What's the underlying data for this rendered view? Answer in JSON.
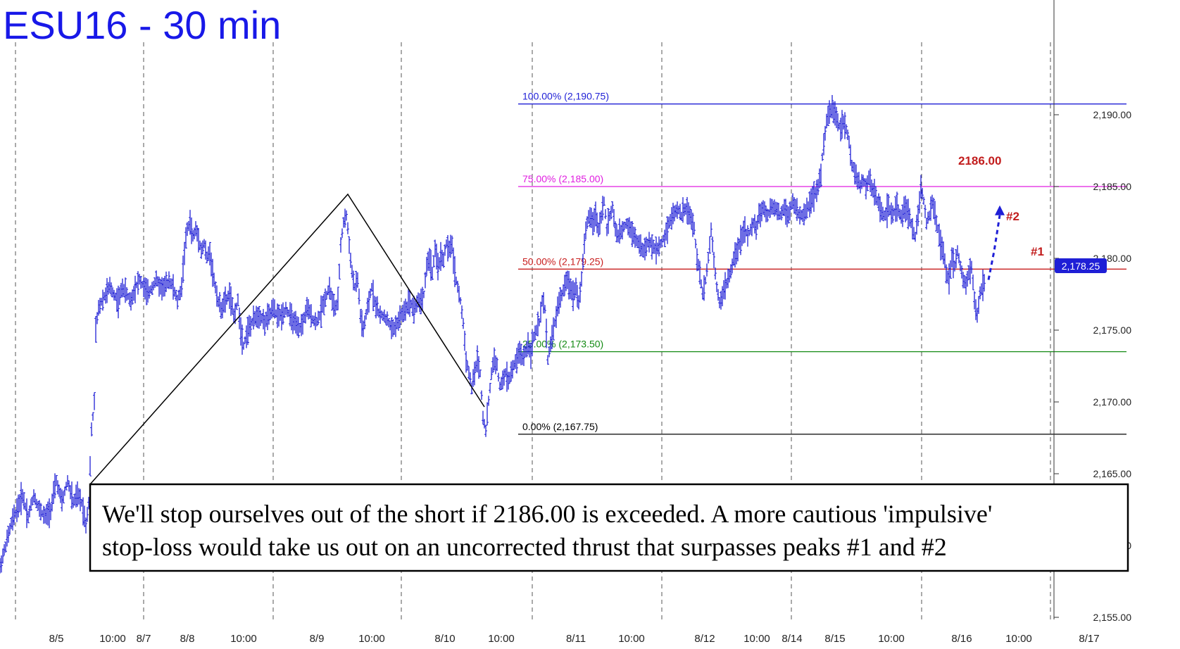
{
  "chart_data": {
    "type": "ohlc",
    "title": "ESU16 - 30 min",
    "current_price_label": "2,178.25",
    "current_price": 2178.25,
    "ylim": [
      2153.3,
      2199.5
    ],
    "y_ticks": [
      {
        "value": 2155,
        "label": "2,155.00"
      },
      {
        "value": 2160,
        "label": "2,160.00"
      },
      {
        "value": 2165,
        "label": "2,165.00"
      },
      {
        "value": 2170,
        "label": "2,170.00"
      },
      {
        "value": 2175,
        "label": "2,175.00"
      },
      {
        "value": 2180,
        "label": "2,180.00"
      },
      {
        "value": 2185,
        "label": "2,185.00"
      },
      {
        "value": 2190,
        "label": "2,190.00"
      }
    ],
    "x_ticks": [
      "8/5",
      "10:00",
      "8/7",
      "8/8",
      "10:00",
      "8/9",
      "10:00",
      "8/10",
      "10:00",
      "8/11",
      "10:00",
      "8/12",
      "10:00",
      "8/14",
      "8/15",
      "10:00",
      "8/16",
      "10:00",
      "8/17"
    ],
    "fib_levels": [
      {
        "label": "100.00% (2,190.75)",
        "value": 2190.75,
        "color": "#1f1fd6"
      },
      {
        "label": "75.00% (2,185.00)",
        "value": 2185.0,
        "color": "#e01ee0"
      },
      {
        "label": "50.00% (2,179.25)",
        "value": 2179.25,
        "color": "#c81e1e"
      },
      {
        "label": "25.00% (2,173.50)",
        "value": 2173.5,
        "color": "#138a13"
      },
      {
        "label": "0.00% (2,167.75)",
        "value": 2167.75,
        "color": "#000000"
      }
    ],
    "annotations": {
      "level": "2186.00",
      "peak2": "#2",
      "peak1": "#1"
    },
    "price_path": [
      [
        0,
        2158.5
      ],
      [
        8,
        2160
      ],
      [
        16,
        2161.5
      ],
      [
        24,
        2162.5
      ],
      [
        32,
        2163.5
      ],
      [
        40,
        2162
      ],
      [
        48,
        2163.5
      ],
      [
        56,
        2162.5
      ],
      [
        64,
        2162
      ],
      [
        72,
        2162.5
      ],
      [
        80,
        2164.5
      ],
      [
        88,
        2163
      ],
      [
        96,
        2164.5
      ],
      [
        104,
        2163
      ],
      [
        110,
        2163.5
      ],
      [
        116,
        2163
      ],
      [
        122,
        2161.5
      ],
      [
        126,
        2163
      ],
      [
        130,
        2168
      ],
      [
        134,
        2170
      ],
      [
        136,
        2175
      ],
      [
        140,
        2176.5
      ],
      [
        144,
        2177
      ],
      [
        150,
        2177.5
      ],
      [
        156,
        2178
      ],
      [
        162,
        2177.5
      ],
      [
        168,
        2177
      ],
      [
        174,
        2178
      ],
      [
        180,
        2177.5
      ],
      [
        186,
        2177
      ],
      [
        192,
        2178
      ],
      [
        198,
        2178.5
      ],
      [
        204,
        2178
      ],
      [
        210,
        2177.5
      ],
      [
        216,
        2178
      ],
      [
        222,
        2178.5
      ],
      [
        228,
        2178
      ],
      [
        234,
        2178
      ],
      [
        240,
        2178.5
      ],
      [
        246,
        2178
      ],
      [
        252,
        2177
      ],
      [
        258,
        2178
      ],
      [
        262,
        2180.5
      ],
      [
        266,
        2182
      ],
      [
        270,
        2182.5
      ],
      [
        274,
        2181.5
      ],
      [
        278,
        2182
      ],
      [
        282,
        2181.5
      ],
      [
        286,
        2180.5
      ],
      [
        290,
        2181
      ],
      [
        294,
        2180
      ],
      [
        298,
        2180.5
      ],
      [
        302,
        2179
      ],
      [
        306,
        2178
      ],
      [
        310,
        2177
      ],
      [
        314,
        2176.5
      ],
      [
        320,
        2177
      ],
      [
        326,
        2177.5
      ],
      [
        332,
        2176
      ],
      [
        338,
        2177
      ],
      [
        342,
        2175
      ],
      [
        346,
        2174
      ],
      [
        352,
        2175
      ],
      [
        358,
        2175.5
      ],
      [
        364,
        2176
      ],
      [
        370,
        2176
      ],
      [
        376,
        2175.5
      ],
      [
        382,
        2176
      ],
      [
        388,
        2176.5
      ],
      [
        394,
        2176
      ],
      [
        400,
        2176
      ],
      [
        406,
        2176.5
      ],
      [
        412,
        2176
      ],
      [
        418,
        2175.5
      ],
      [
        424,
        2175
      ],
      [
        430,
        2175.5
      ],
      [
        436,
        2176.5
      ],
      [
        442,
        2176
      ],
      [
        448,
        2175.5
      ],
      [
        454,
        2176
      ],
      [
        460,
        2177
      ],
      [
        464,
        2177.5
      ],
      [
        468,
        2178
      ],
      [
        472,
        2177
      ],
      [
        476,
        2176.5
      ],
      [
        480,
        2177
      ],
      [
        484,
        2181
      ],
      [
        488,
        2182.5
      ],
      [
        492,
        2183
      ],
      [
        496,
        2181
      ],
      [
        500,
        2179
      ],
      [
        504,
        2178
      ],
      [
        508,
        2178.5
      ],
      [
        512,
        2176
      ],
      [
        516,
        2175
      ],
      [
        520,
        2176
      ],
      [
        524,
        2177
      ],
      [
        528,
        2178
      ],
      [
        532,
        2177
      ],
      [
        536,
        2176.5
      ],
      [
        540,
        2176
      ],
      [
        546,
        2176
      ],
      [
        552,
        2175.5
      ],
      [
        558,
        2175
      ],
      [
        564,
        2175.5
      ],
      [
        570,
        2176
      ],
      [
        576,
        2176.5
      ],
      [
        582,
        2177
      ],
      [
        588,
        2176.5
      ],
      [
        594,
        2177
      ],
      [
        598,
        2177
      ],
      [
        602,
        2177.5
      ],
      [
        606,
        2179.5
      ],
      [
        610,
        2180
      ],
      [
        614,
        2179
      ],
      [
        618,
        2180.5
      ],
      [
        622,
        2179.5
      ],
      [
        626,
        2180
      ],
      [
        630,
        2180
      ],
      [
        634,
        2181
      ],
      [
        638,
        2180.5
      ],
      [
        642,
        2181
      ],
      [
        646,
        2179
      ],
      [
        650,
        2178
      ],
      [
        654,
        2177
      ],
      [
        658,
        2175.5
      ],
      [
        662,
        2173
      ],
      [
        666,
        2172
      ],
      [
        670,
        2171
      ],
      [
        674,
        2172
      ],
      [
        678,
        2173
      ],
      [
        682,
        2172
      ],
      [
        686,
        2169
      ],
      [
        690,
        2168
      ],
      [
        694,
        2170
      ],
      [
        698,
        2172
      ],
      [
        702,
        2173
      ],
      [
        706,
        2172.5
      ],
      [
        710,
        2171
      ],
      [
        714,
        2171.5
      ],
      [
        718,
        2172
      ],
      [
        722,
        2171.5
      ],
      [
        726,
        2172
      ],
      [
        730,
        2172.5
      ],
      [
        734,
        2173
      ],
      [
        738,
        2173.5
      ],
      [
        742,
        2173
      ],
      [
        746,
        2173.5
      ],
      [
        750,
        2174
      ],
      [
        754,
        2173.5
      ],
      [
        758,
        2174.5
      ],
      [
        762,
        2175
      ],
      [
        766,
        2175.5
      ],
      [
        770,
        2177
      ],
      [
        774,
        2176.5
      ],
      [
        778,
        2173
      ],
      [
        782,
        2174
      ],
      [
        786,
        2175
      ],
      [
        790,
        2176
      ],
      [
        794,
        2177
      ],
      [
        798,
        2177.5
      ],
      [
        802,
        2178
      ],
      [
        806,
        2178.5
      ],
      [
        810,
        2178
      ],
      [
        814,
        2177.5
      ],
      [
        818,
        2178
      ],
      [
        822,
        2177
      ],
      [
        826,
        2178.5
      ],
      [
        830,
        2181
      ],
      [
        834,
        2182.5
      ],
      [
        838,
        2183
      ],
      [
        842,
        2182.5
      ],
      [
        846,
        2183
      ],
      [
        850,
        2182
      ],
      [
        854,
        2183
      ],
      [
        858,
        2184
      ],
      [
        862,
        2182
      ],
      [
        866,
        2183
      ],
      [
        870,
        2183.5
      ],
      [
        874,
        2182
      ],
      [
        878,
        2181.5
      ],
      [
        884,
        2182
      ],
      [
        890,
        2182.5
      ],
      [
        896,
        2182
      ],
      [
        902,
        2181.5
      ],
      [
        908,
        2181
      ],
      [
        914,
        2180.5
      ],
      [
        920,
        2181
      ],
      [
        926,
        2181
      ],
      [
        932,
        2180.5
      ],
      [
        938,
        2181
      ],
      [
        944,
        2181.5
      ],
      [
        950,
        2182.5
      ],
      [
        956,
        2183
      ],
      [
        962,
        2183.5
      ],
      [
        968,
        2183
      ],
      [
        974,
        2183.5
      ],
      [
        980,
        2183
      ],
      [
        986,
        2182
      ],
      [
        990,
        2180
      ],
      [
        994,
        2179
      ],
      [
        998,
        2177.5
      ],
      [
        1002,
        2178.5
      ],
      [
        1006,
        2180
      ],
      [
        1010,
        2182
      ],
      [
        1014,
        2180
      ],
      [
        1018,
        2178
      ],
      [
        1022,
        2177
      ],
      [
        1026,
        2177.5
      ],
      [
        1030,
        2178
      ],
      [
        1034,
        2178.5
      ],
      [
        1038,
        2179
      ],
      [
        1042,
        2180
      ],
      [
        1046,
        2180.5
      ],
      [
        1050,
        2181
      ],
      [
        1054,
        2181.5
      ],
      [
        1058,
        2182
      ],
      [
        1062,
        2181.5
      ],
      [
        1066,
        2182
      ],
      [
        1070,
        2182.5
      ],
      [
        1074,
        2182
      ],
      [
        1078,
        2183
      ],
      [
        1084,
        2183.5
      ],
      [
        1090,
        2183
      ],
      [
        1096,
        2183.5
      ],
      [
        1102,
        2183.5
      ],
      [
        1108,
        2183
      ],
      [
        1114,
        2183.5
      ],
      [
        1120,
        2183
      ],
      [
        1126,
        2184
      ],
      [
        1130,
        2183.5
      ],
      [
        1134,
        2183
      ],
      [
        1140,
        2183
      ],
      [
        1146,
        2183.5
      ],
      [
        1152,
        2184
      ],
      [
        1158,
        2184.5
      ],
      [
        1162,
        2185
      ],
      [
        1166,
        2186
      ],
      [
        1170,
        2188
      ],
      [
        1174,
        2189.5
      ],
      [
        1178,
        2190
      ],
      [
        1182,
        2190.5
      ],
      [
        1186,
        2190
      ],
      [
        1190,
        2189.5
      ],
      [
        1194,
        2189
      ],
      [
        1198,
        2189.5
      ],
      [
        1202,
        2189
      ],
      [
        1206,
        2188
      ],
      [
        1210,
        2186.5
      ],
      [
        1214,
        2186
      ],
      [
        1218,
        2185.5
      ],
      [
        1222,
        2185
      ],
      [
        1226,
        2185.5
      ],
      [
        1230,
        2185
      ],
      [
        1234,
        2185.5
      ],
      [
        1238,
        2185
      ],
      [
        1242,
        2184.5
      ],
      [
        1246,
        2184
      ],
      [
        1250,
        2183.5
      ],
      [
        1256,
        2183
      ],
      [
        1262,
        2183.5
      ],
      [
        1268,
        2183
      ],
      [
        1274,
        2183.5
      ],
      [
        1280,
        2183
      ],
      [
        1286,
        2183.5
      ],
      [
        1292,
        2183
      ],
      [
        1296,
        2182
      ],
      [
        1300,
        2181.5
      ],
      [
        1304,
        2183
      ],
      [
        1308,
        2185
      ],
      [
        1312,
        2184
      ],
      [
        1316,
        2182.5
      ],
      [
        1320,
        2183
      ],
      [
        1324,
        2184
      ],
      [
        1328,
        2183
      ],
      [
        1332,
        2182
      ],
      [
        1336,
        2181
      ],
      [
        1340,
        2180.5
      ],
      [
        1344,
        2179
      ],
      [
        1348,
        2178.5
      ],
      [
        1352,
        2180
      ],
      [
        1356,
        2179.5
      ],
      [
        1360,
        2180.5
      ],
      [
        1364,
        2179.5
      ],
      [
        1368,
        2178.5
      ],
      [
        1372,
        2178
      ],
      [
        1376,
        2179
      ],
      [
        1380,
        2179.5
      ],
      [
        1384,
        2177
      ],
      [
        1388,
        2176
      ],
      [
        1392,
        2177.5
      ],
      [
        1396,
        2178.25
      ]
    ],
    "projection": [
      [
        1404,
        2178.5
      ],
      [
        1412,
        2180.5
      ],
      [
        1420,
        2183
      ]
    ]
  },
  "note_box": {
    "line1": "We'll stop ourselves out of the short if 2186.00 is exceeded. A more cautious 'impulsive'",
    "line2": "stop-loss would take us out on an uncorrected thrust that surpasses peaks #1 and #2"
  },
  "colors": {
    "bars": "#1f1fd6",
    "title": "#1818e8",
    "annotation": "#c21d1d",
    "grid": "#555555"
  }
}
